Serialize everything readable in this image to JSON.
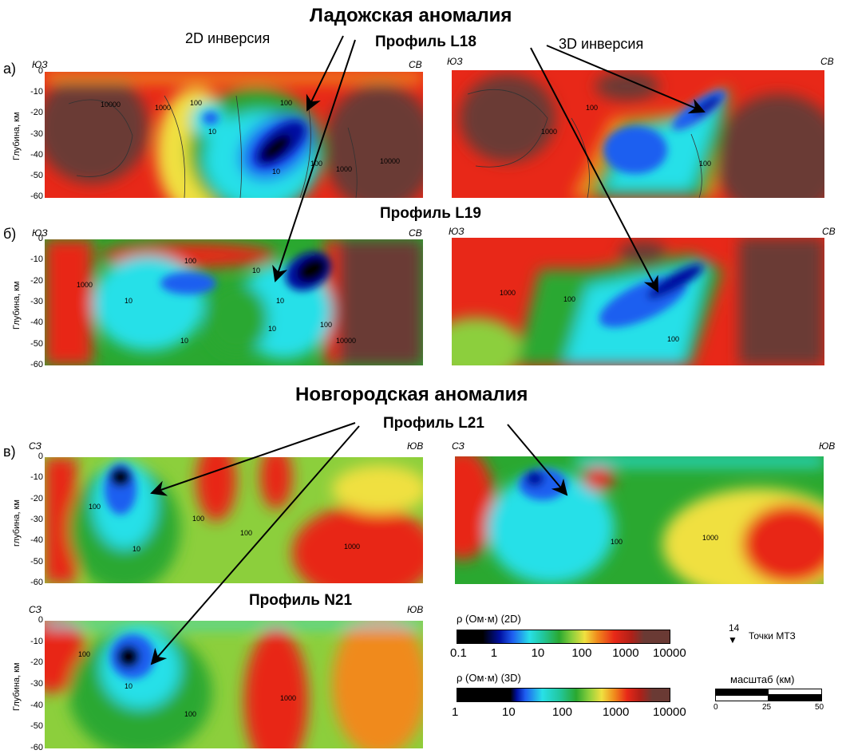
{
  "titles": {
    "ladoga": "Ладожская аномалия",
    "novgorod": "Новгородская аномалия",
    "inv2d": "2D инверсия",
    "inv3d": "3D инверсия",
    "profile_l18": "Профиль L18",
    "profile_l19": "Профиль L19",
    "profile_l21": "Профиль L21",
    "profile_n21": "Профиль N21"
  },
  "panel_letters": {
    "a": "а)",
    "b": "б)",
    "v": "в)"
  },
  "directions": {
    "sw": "ЮЗ",
    "ne": "СВ",
    "nw": "СЗ",
    "se": "ЮВ"
  },
  "axis": {
    "ylabel_upper": "Глубина, км",
    "ylabel_lower": "глубина, км",
    "ticks": [
      "0",
      "-10",
      "-20",
      "-30",
      "-40",
      "-50",
      "-60"
    ]
  },
  "contours": {
    "c10": "10",
    "c100": "100",
    "c1000": "1000",
    "c10000": "10000"
  },
  "legend": {
    "title_2d": "ρ (Ом·м) (2D)",
    "ticks_2d": [
      "0.1",
      "1",
      "10",
      "100",
      "1000",
      "10000"
    ],
    "title_3d": "ρ (Ом·м) (3D)",
    "ticks_3d": [
      "1",
      "10",
      "100",
      "1000",
      "10000"
    ],
    "mt_number": "14",
    "mt_label": "Точки МТЗ",
    "scale_title": "масштаб (км)",
    "scale_ticks": [
      "0",
      "25",
      "50"
    ]
  },
  "colors": {
    "black": "#000000",
    "dblue": "#0010a0",
    "blue": "#1e5ef0",
    "cyan": "#28e0e8",
    "teal": "#22c8a0",
    "green": "#2aa830",
    "lgreen": "#8ccf3c",
    "yellow": "#f0e040",
    "orange": "#f08a1c",
    "red": "#e82818",
    "brown": "#6a3a34"
  }
}
